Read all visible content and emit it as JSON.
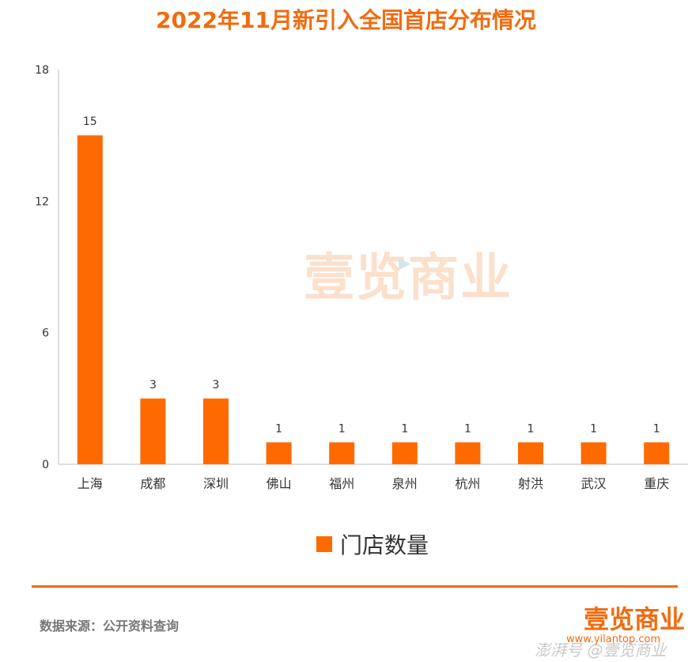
{
  "header": {
    "title": "2022年11月新引入全国首店分布情况"
  },
  "chart_data": {
    "type": "bar",
    "title": "2022年11月新引入全国首店分布情况",
    "categories": [
      "上海",
      "成都",
      "深圳",
      "佛山",
      "福州",
      "泉州",
      "杭州",
      "射洪",
      "武汉",
      "重庆"
    ],
    "series": [
      {
        "name": "门店数量",
        "values": [
          15,
          3,
          3,
          1,
          1,
          1,
          1,
          1,
          1,
          1
        ],
        "color": "#ff6a00"
      }
    ],
    "ylim": [
      0,
      18
    ],
    "yticks": [
      0,
      6,
      12,
      18
    ],
    "xlabel": "",
    "ylabel": "",
    "grid": false,
    "legend": "bottom-center",
    "data_labels": true
  },
  "footer": {
    "source": "数据来源：公开资料查询",
    "brand": "壹览商业",
    "brand_url": "www.yilantop.com",
    "credit": "澎湃号 @壹览商业"
  },
  "watermark": {
    "text": "壹览商业",
    "icon": "play-icon"
  },
  "colors": {
    "accent": "#f26b0f",
    "bar": "#ff6a00"
  }
}
